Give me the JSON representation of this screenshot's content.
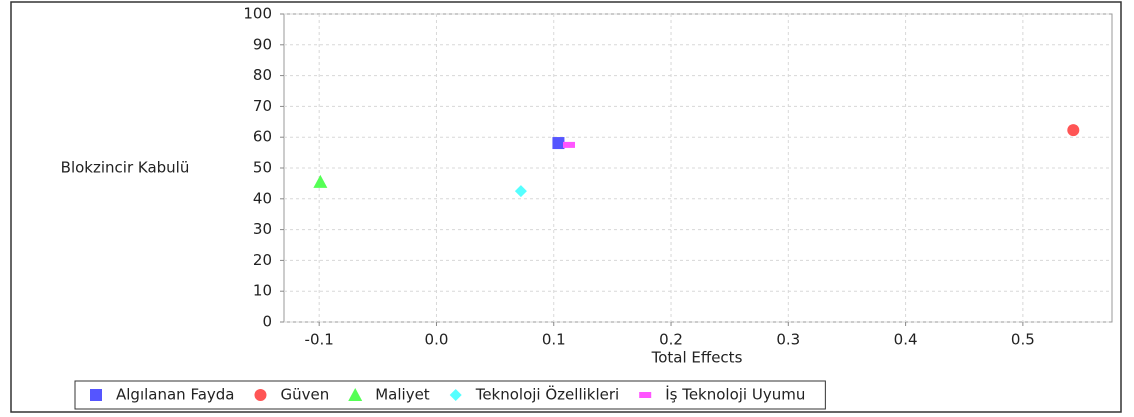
{
  "chart_data": {
    "type": "scatter",
    "xlabel": "Total Effects",
    "ylabel": "Blokzincir Kabulü",
    "xlim": [
      -0.13,
      0.576
    ],
    "ylim": [
      0,
      100
    ],
    "xticks": [
      -0.1,
      {
        "value": 0,
        "label": "0.0"
      },
      0.1,
      0.2,
      0.3,
      0.4,
      0.5
    ],
    "yticks": [
      0,
      10,
      20,
      30,
      40,
      50,
      60,
      70,
      80,
      90,
      100
    ],
    "grid": true,
    "legend": "bottom",
    "series": [
      {
        "name": "Algılanan Fayda",
        "color": "#5555ff",
        "marker": "square",
        "x": [
          0.104
        ],
        "values": [
          58.1
        ]
      },
      {
        "name": "Güven",
        "color": "#ff5555",
        "marker": "circle",
        "x": [
          0.543
        ],
        "values": [
          62.3
        ]
      },
      {
        "name": "Maliyet",
        "color": "#55ff55",
        "marker": "triangle",
        "x": [
          -0.099
        ],
        "values": [
          45.5
        ]
      },
      {
        "name": "Teknoloji Özellikleri",
        "color": "#55ffff",
        "marker": "diamond",
        "x": [
          0.072
        ],
        "values": [
          42.5
        ]
      },
      {
        "name": "İş Teknoloji Uyumu",
        "color": "#ff55ff",
        "marker": "rect",
        "x": [
          0.113
        ],
        "values": [
          57.5
        ]
      }
    ]
  }
}
